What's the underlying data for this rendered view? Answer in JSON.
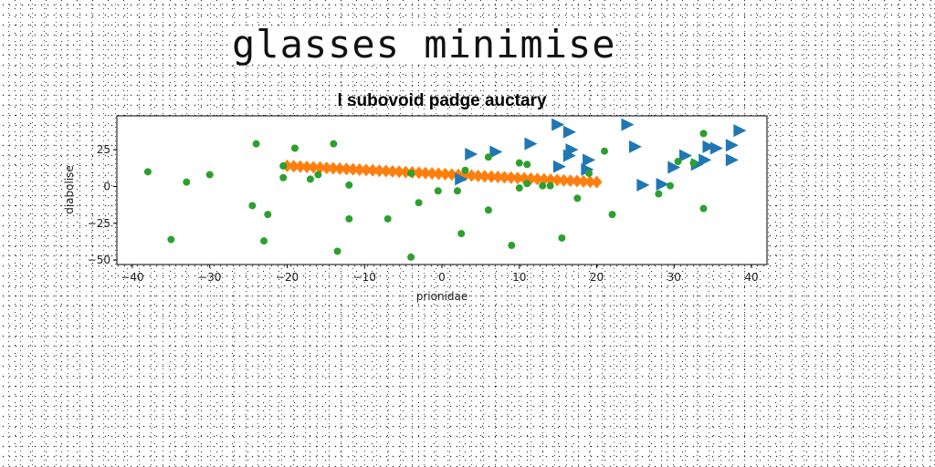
{
  "page_title": "glasses minimise",
  "chart_data": {
    "type": "scatter",
    "title": "l subovoid padge auctary",
    "xlabel": "prionidae",
    "ylabel": "diabolise",
    "xlim": [
      -42,
      42
    ],
    "ylim": [
      -53,
      48
    ],
    "xticks": [
      -40,
      -30,
      -20,
      -10,
      0,
      10,
      20,
      30,
      40
    ],
    "yticks": [
      -50,
      -25,
      0,
      25
    ],
    "grid": false,
    "series": [
      {
        "marker": "triangle-right",
        "color": "#1f77b4",
        "points": [
          [
            3.8,
            22
          ],
          [
            7,
            23.5
          ],
          [
            11.5,
            29
          ],
          [
            15,
            42
          ],
          [
            16.5,
            37
          ],
          [
            16.8,
            25
          ],
          [
            16.5,
            21
          ],
          [
            15.2,
            13.5
          ],
          [
            19,
            18
          ],
          [
            18.8,
            11.5
          ],
          [
            24,
            42
          ],
          [
            25,
            27
          ],
          [
            26,
            1
          ],
          [
            28.5,
            1.5
          ],
          [
            30,
            13
          ],
          [
            31.5,
            21
          ],
          [
            33,
            15
          ],
          [
            34,
            18
          ],
          [
            34.5,
            27
          ],
          [
            35.5,
            26
          ],
          [
            37.5,
            28
          ],
          [
            37.5,
            18
          ],
          [
            38.5,
            38
          ],
          [
            2.5,
            5
          ]
        ]
      },
      {
        "marker": "diamond",
        "color": "#ff7f0e",
        "generator": "line",
        "from": [
          -20,
          14
        ],
        "to": [
          20,
          3
        ],
        "count": 48
      },
      {
        "marker": "circle",
        "color": "#2ca02c",
        "points": [
          [
            -38,
            10
          ],
          [
            -35,
            -36
          ],
          [
            -33,
            3
          ],
          [
            -30,
            8
          ],
          [
            -24.5,
            -13
          ],
          [
            -24,
            29
          ],
          [
            -23,
            -37
          ],
          [
            -22.5,
            -19
          ],
          [
            -20.5,
            14
          ],
          [
            -20.5,
            6
          ],
          [
            -19,
            26
          ],
          [
            -17,
            5
          ],
          [
            -16,
            8
          ],
          [
            -14,
            29
          ],
          [
            -13.5,
            -44
          ],
          [
            -12,
            -22
          ],
          [
            -12,
            1
          ],
          [
            -7,
            -22
          ],
          [
            -4,
            -48
          ],
          [
            -4,
            9
          ],
          [
            -3,
            -11
          ],
          [
            -0.5,
            -3
          ],
          [
            2,
            -3
          ],
          [
            2.5,
            -32
          ],
          [
            3,
            11
          ],
          [
            6,
            20
          ],
          [
            6,
            -16
          ],
          [
            9,
            -40
          ],
          [
            10,
            16
          ],
          [
            10,
            -1
          ],
          [
            11,
            15
          ],
          [
            11,
            2
          ],
          [
            13,
            0.5
          ],
          [
            14,
            0.5
          ],
          [
            15.5,
            -35
          ],
          [
            17.5,
            -8
          ],
          [
            19,
            9
          ],
          [
            21,
            24
          ],
          [
            22,
            -19
          ],
          [
            28,
            -5
          ],
          [
            29.5,
            0.5
          ],
          [
            30.5,
            17
          ],
          [
            32.5,
            16
          ],
          [
            33.8,
            36
          ],
          [
            33.8,
            -15
          ]
        ]
      }
    ]
  }
}
